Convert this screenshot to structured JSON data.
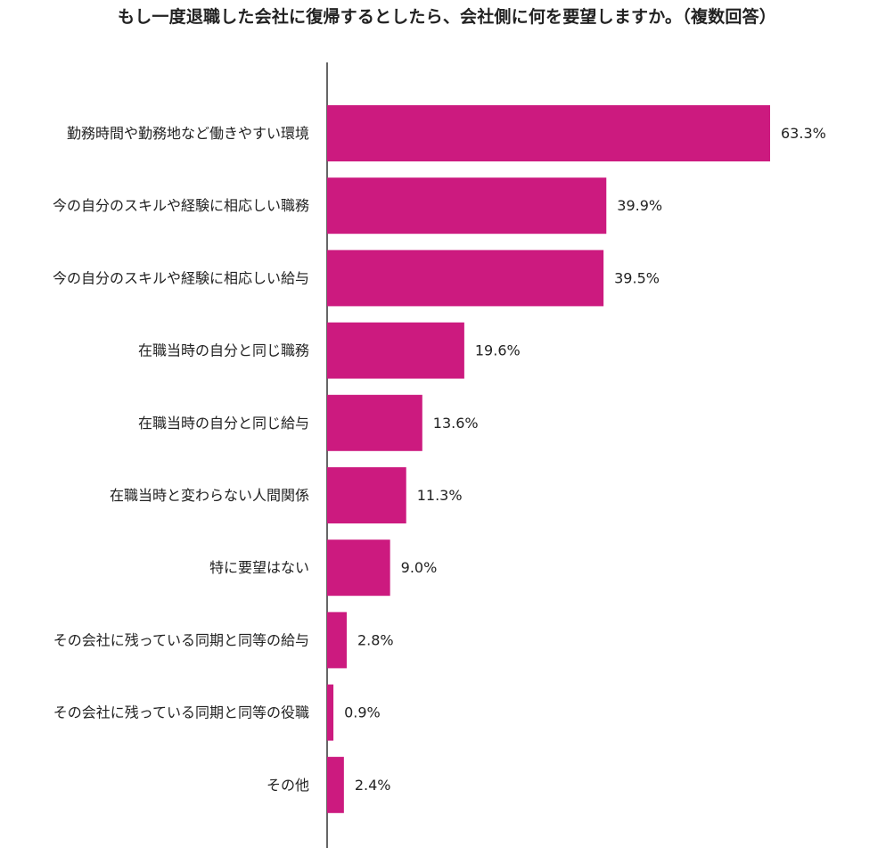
{
  "chart_data": {
    "type": "bar",
    "orientation": "horizontal",
    "title": "もし一度退職した会社に復帰するとしたら、会社側に何を要望しますか。（複数回答）",
    "categories": [
      "勤務時間や勤務地など働きやすい環境",
      "今の自分のスキルや経験に相応しい職務",
      "今の自分のスキルや経験に相応しい給与",
      "在職当時の自分と同じ職務",
      "在職当時の自分と同じ給与",
      "在職当時と変わらない人間関係",
      "特に要望はない",
      "その会社に残っている同期と同等の給与",
      "その会社に残っている同期と同等の役職",
      "その他"
    ],
    "values": [
      63.3,
      39.9,
      39.5,
      19.6,
      13.6,
      11.3,
      9.0,
      2.8,
      0.9,
      2.4
    ],
    "value_labels": [
      "63.3%",
      "39.9%",
      "39.5%",
      "19.6%",
      "13.6%",
      "11.3%",
      "9.0%",
      "2.8%",
      "0.9%",
      "2.4%"
    ],
    "unit": "%",
    "bar_color": "#CC1A7F",
    "axis_color": "#333333",
    "grid": false,
    "legend": "none",
    "xlim": [
      0,
      80
    ]
  }
}
